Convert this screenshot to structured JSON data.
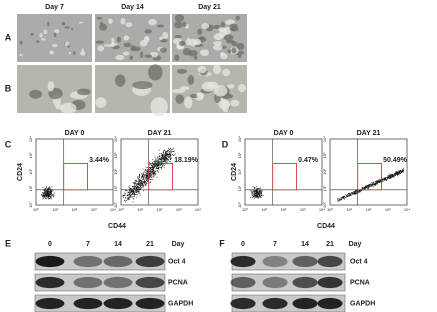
{
  "micrographs": {
    "columns": [
      "Day 7",
      "Day 14",
      "Day 21"
    ],
    "rows": [
      "A",
      "B"
    ]
  },
  "flow": [
    {
      "label": "C",
      "y_label": "CD24",
      "x_label": "CD44",
      "ticks": [
        "10⁰",
        "10¹",
        "10²",
        "10³",
        "10⁴"
      ],
      "plots": [
        {
          "title": "DAY 0",
          "percent": "3.44%"
        },
        {
          "title": "DAY 21",
          "percent": "18.19%"
        }
      ]
    },
    {
      "label": "D",
      "y_label": "CD24",
      "x_label": "CD44",
      "ticks": [
        "10⁰",
        "10¹",
        "10²",
        "10³",
        "10⁴"
      ],
      "plots": [
        {
          "title": "DAY 0",
          "percent": "0.47%"
        },
        {
          "title": "DAY 21",
          "percent": "50.49%"
        }
      ]
    }
  ],
  "blots": [
    {
      "label": "E",
      "lanes": [
        "0",
        "7",
        "14",
        "21"
      ],
      "lane_unit": "Day",
      "proteins": [
        "Oct 4",
        "PCNA",
        "GAPDH"
      ]
    },
    {
      "label": "F",
      "lanes": [
        "0",
        "7",
        "14",
        "21"
      ],
      "lane_unit": "Day",
      "proteins": [
        "Oct 4",
        "PCNA",
        "GAPDH"
      ]
    }
  ]
}
